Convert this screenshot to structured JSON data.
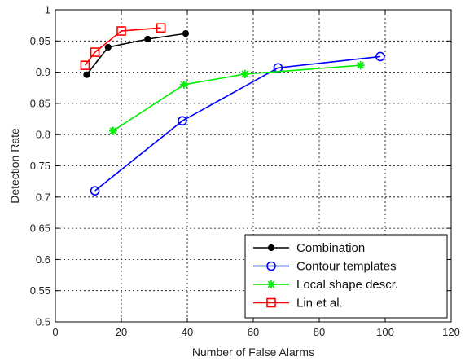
{
  "chart_data": {
    "type": "line",
    "title": "",
    "xlabel": "Number of False Alarms",
    "ylabel": "Detection Rate",
    "xlim": [
      0,
      120
    ],
    "ylim": [
      0.5,
      1.0
    ],
    "x_ticks": [
      0,
      20,
      40,
      60,
      80,
      100,
      120
    ],
    "y_ticks": [
      0.5,
      0.55,
      0.6,
      0.65,
      0.7,
      0.75,
      0.8,
      0.85,
      0.9,
      0.95,
      1
    ],
    "x_tick_labels": [
      "0",
      "20",
      "40",
      "60",
      "80",
      "100",
      "120"
    ],
    "y_tick_labels": [
      "0.5",
      "0.55",
      "0.6",
      "0.65",
      "0.7",
      "0.75",
      "0.8",
      "0.85",
      "0.9",
      "0.95",
      "1"
    ],
    "grid": true,
    "legend_position": "bottom-right",
    "series": [
      {
        "name": "Combination",
        "color": "#000000",
        "marker": "dot",
        "x": [
          9.5,
          16,
          28,
          39.5
        ],
        "y": [
          0.896,
          0.94,
          0.953,
          0.962
        ]
      },
      {
        "name": "Contour templates",
        "color": "#0000ff",
        "marker": "circle",
        "x": [
          12,
          38.5,
          67.5,
          98.5
        ],
        "y": [
          0.71,
          0.822,
          0.907,
          0.925
        ]
      },
      {
        "name": "Local shape descr.",
        "color": "#00ee00",
        "marker": "star",
        "x": [
          17.5,
          39,
          57.5,
          92.5
        ],
        "y": [
          0.806,
          0.88,
          0.897,
          0.911
        ]
      },
      {
        "name": "Lin et al.",
        "color": "#ff0000",
        "marker": "square",
        "x": [
          9,
          12,
          20,
          32
        ],
        "y": [
          0.911,
          0.932,
          0.966,
          0.971
        ]
      }
    ]
  }
}
